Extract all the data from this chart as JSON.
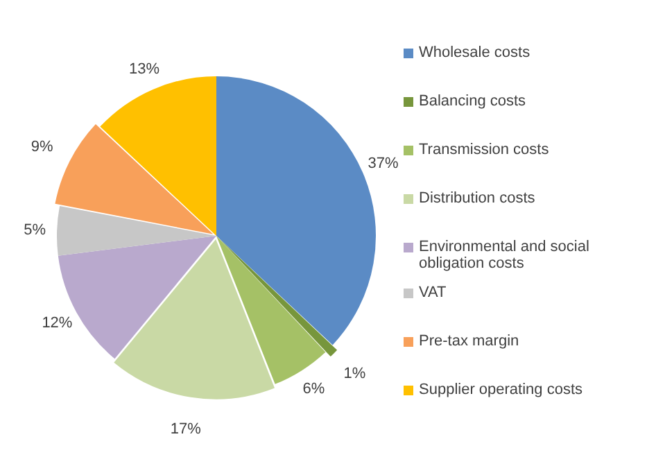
{
  "chart_data": {
    "type": "pie",
    "categories": [
      "Wholesale costs",
      "Balancing costs",
      "Transmission costs",
      "Distribution costs",
      "Environmental and social obligation costs",
      "VAT",
      "Pre-tax margin",
      "Supplier operating costs"
    ],
    "values": [
      37,
      1,
      6,
      17,
      12,
      5,
      9,
      13
    ],
    "value_labels": [
      "37%",
      "1%",
      "6%",
      "17%",
      "12%",
      "5%",
      "9%",
      "13%"
    ],
    "colors": [
      "#5b8bc5",
      "#77963c",
      "#a5c166",
      "#c9d9a5",
      "#b9a9cd",
      "#c7c7c7",
      "#f8a05a",
      "#ffc000"
    ],
    "legend": "right"
  }
}
